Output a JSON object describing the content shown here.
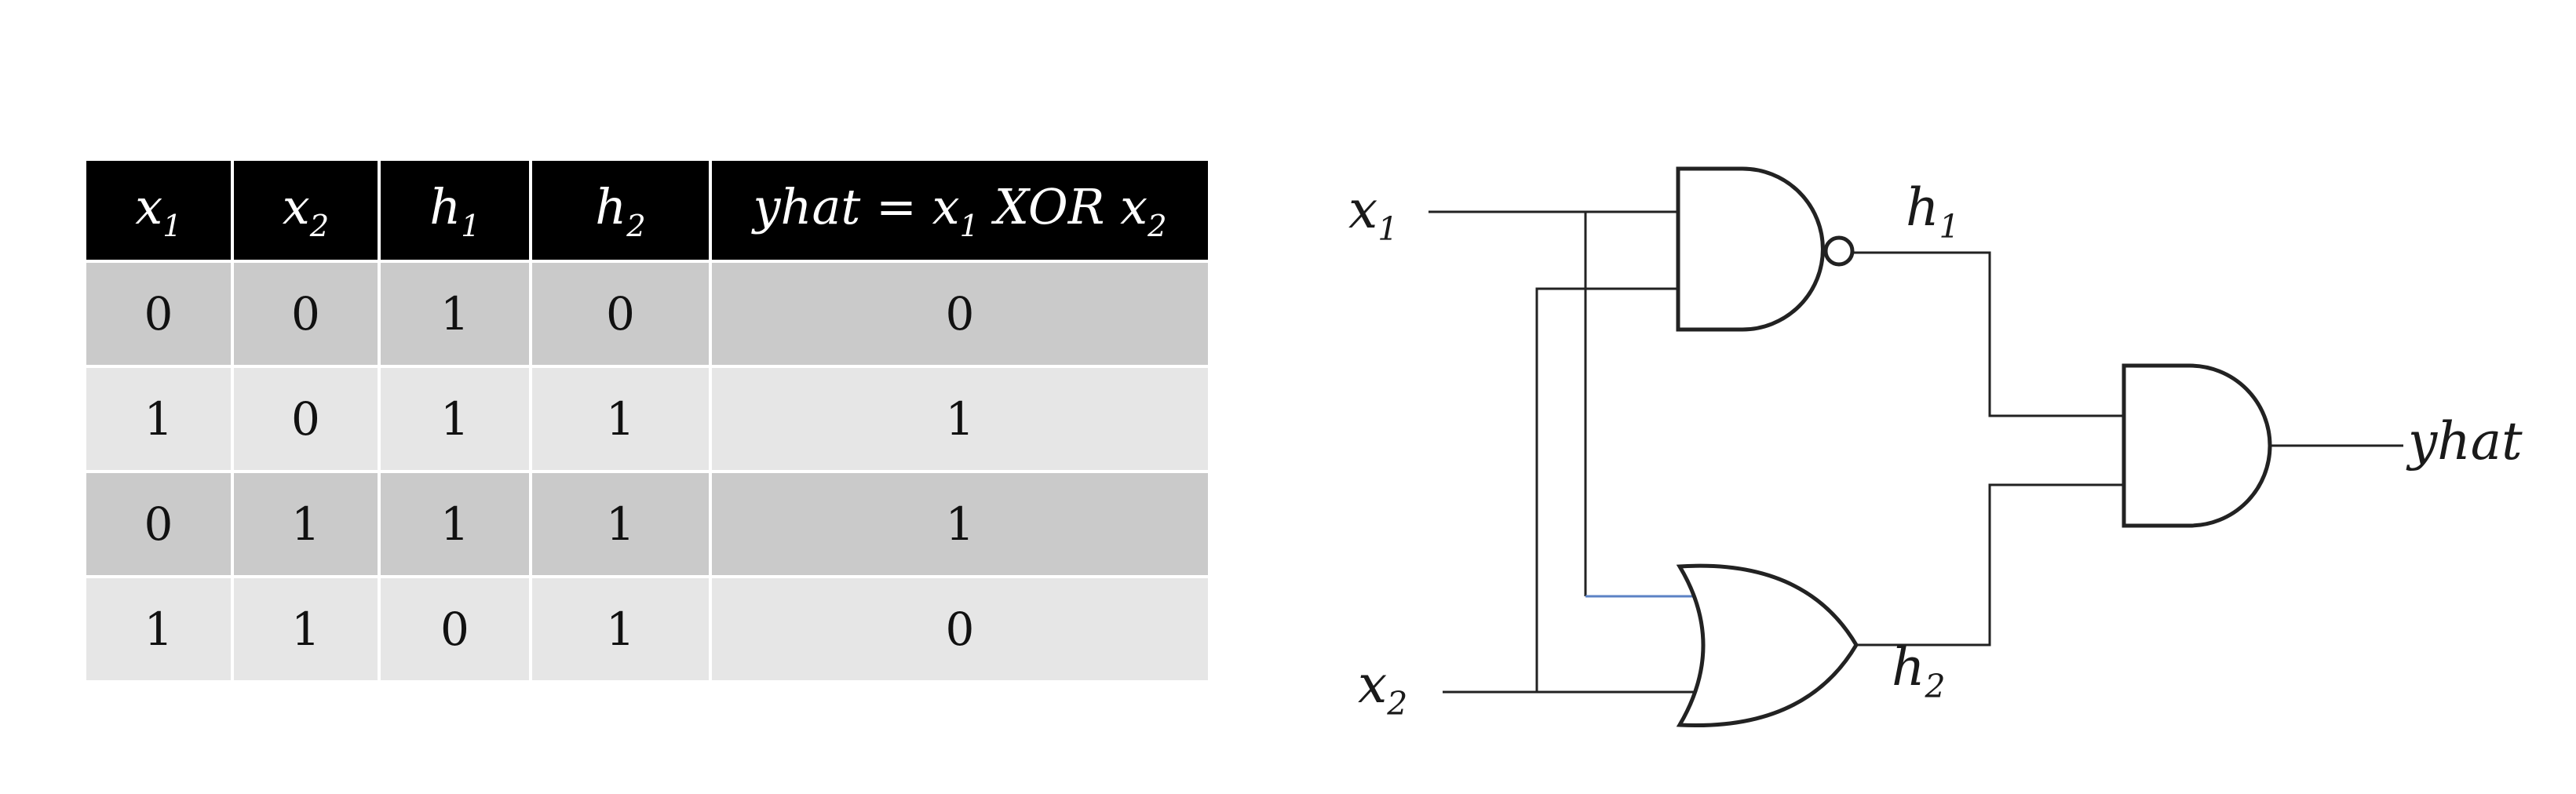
{
  "table": {
    "headers": [
      {
        "base": "x",
        "sub": "1"
      },
      {
        "base": "x",
        "sub": "2"
      },
      {
        "base": "h",
        "sub": "1"
      },
      {
        "base": "h",
        "sub": "2"
      }
    ],
    "last_header": {
      "lhs": "yhat = x",
      "sub1": "1",
      "mid": " XOR x",
      "sub2": "2"
    },
    "rows": [
      [
        "0",
        "0",
        "1",
        "0",
        "0"
      ],
      [
        "1",
        "0",
        "1",
        "1",
        "1"
      ],
      [
        "0",
        "1",
        "1",
        "1",
        "1"
      ],
      [
        "1",
        "1",
        "0",
        "1",
        "0"
      ]
    ]
  },
  "circuit": {
    "inputs": {
      "x1": {
        "base": "x",
        "sub": "1"
      },
      "x2": {
        "base": "x",
        "sub": "2"
      }
    },
    "hidden": {
      "h1": {
        "base": "h",
        "sub": "1"
      },
      "h2": {
        "base": "h",
        "sub": "2"
      }
    },
    "output": "yhat",
    "gates": [
      "NAND",
      "OR",
      "AND"
    ],
    "colors": {
      "wire": "#222222",
      "wire_highlight": "#5b82c4",
      "header_bg": "#000000",
      "row_dark": "#cacaca",
      "row_light": "#e6e6e6"
    }
  }
}
